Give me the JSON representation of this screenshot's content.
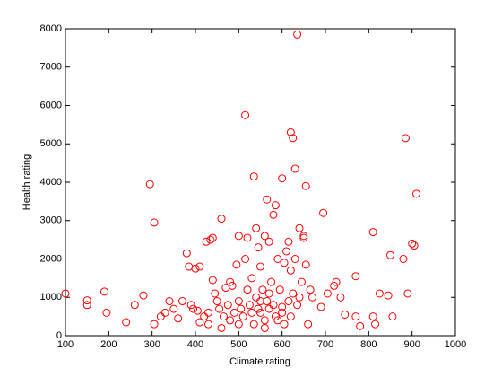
{
  "chart_data": {
    "type": "scatter",
    "xlabel": "Climate rating",
    "ylabel": "Health rating",
    "xlim": [
      100,
      1000
    ],
    "xticks": [
      100,
      200,
      300,
      400,
      500,
      600,
      700,
      800,
      900,
      1000
    ],
    "ylim": [
      0,
      8000
    ],
    "yticks": [
      0,
      1000,
      2000,
      3000,
      4000,
      5000,
      6000,
      7000,
      8000
    ],
    "grid": false,
    "series": [
      {
        "color": "#ff0000",
        "x": [
          100,
          150,
          150,
          190,
          195,
          240,
          260,
          280,
          295,
          305,
          305,
          320,
          330,
          340,
          350,
          360,
          370,
          380,
          385,
          390,
          395,
          400,
          405,
          410,
          410,
          420,
          425,
          430,
          435,
          440,
          440,
          445,
          450,
          455,
          460,
          465,
          470,
          475,
          480,
          485,
          490,
          495,
          500,
          500,
          505,
          510,
          515,
          515,
          520,
          520,
          525,
          530,
          535,
          535,
          540,
          540,
          545,
          545,
          550,
          550,
          555,
          560,
          560,
          565,
          565,
          570,
          570,
          575,
          580,
          580,
          585,
          585,
          590,
          595,
          600,
          600,
          605,
          605,
          610,
          615,
          615,
          620,
          620,
          625,
          625,
          630,
          630,
          635,
          635,
          640,
          640,
          645,
          650,
          650,
          655,
          655,
          660,
          665,
          670,
          690,
          695,
          705,
          720,
          725,
          735,
          745,
          770,
          770,
          780,
          810,
          810,
          815,
          825,
          845,
          850,
          855,
          880,
          885,
          890,
          900,
          905,
          910,
          500,
          480,
          460,
          430,
          560,
          590,
          620,
          530,
          550,
          570,
          600
        ],
        "y": [
          1100,
          800,
          920,
          1150,
          600,
          350,
          800,
          1050,
          3950,
          2950,
          300,
          500,
          600,
          900,
          700,
          450,
          900,
          2150,
          1800,
          800,
          700,
          1750,
          650,
          1800,
          350,
          500,
          2450,
          600,
          2500,
          2550,
          1450,
          1100,
          900,
          700,
          3050,
          500,
          1250,
          800,
          1400,
          1300,
          600,
          1850,
          2600,
          900,
          700,
          500,
          5750,
          2000,
          2550,
          1200,
          800,
          1500,
          4150,
          300,
          2800,
          1000,
          700,
          2300,
          1800,
          600,
          1200,
          2600,
          400,
          3550,
          900,
          2450,
          700,
          1400,
          3150,
          800,
          3400,
          500,
          2000,
          1200,
          4100,
          600,
          1900,
          300,
          2200,
          2450,
          900,
          5300,
          1700,
          5150,
          1100,
          4350,
          2000,
          7850,
          800,
          2800,
          1000,
          1400,
          2550,
          2600,
          3900,
          1850,
          300,
          1200,
          1000,
          750,
          3200,
          1100,
          1300,
          1400,
          1000,
          550,
          1550,
          500,
          250,
          2700,
          500,
          300,
          1100,
          1050,
          2100,
          500,
          2000,
          5150,
          1100,
          2400,
          2350,
          3700,
          300,
          400,
          200,
          300,
          200,
          400,
          500,
          600,
          900,
          1100,
          750
        ]
      }
    ]
  }
}
